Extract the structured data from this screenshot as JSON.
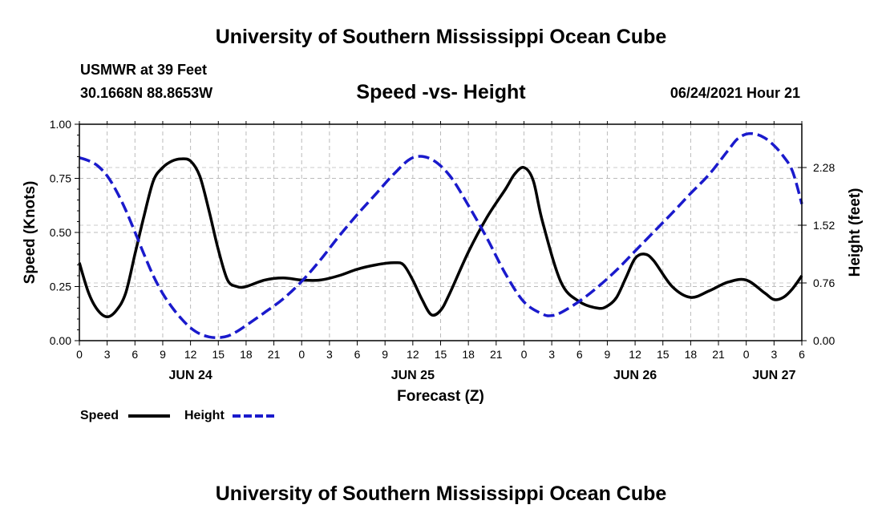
{
  "header": {
    "title": "University of Southern Mississippi Ocean Cube",
    "station": "USMWR at 39 Feet",
    "coords": "30.1668N  88.8653W",
    "subtitle": "Speed -vs- Height",
    "datetime": "06/24/2021 Hour 21"
  },
  "footer": {
    "title": "University of Southern Mississippi Ocean Cube"
  },
  "legend": {
    "speed_label": "Speed",
    "height_label": "Height"
  },
  "colors": {
    "speed": "#000000",
    "height": "#1a1acc",
    "grid": "#bbbbbb"
  },
  "chart_data": {
    "type": "line",
    "xlabel": "Forecast (Z)",
    "ylabel": "Speed (Knots)",
    "y2label": "Height (feet)",
    "x_units": "hours since 2021-06-24 00Z",
    "xlim": [
      0,
      78
    ],
    "ylim": [
      0,
      1.0
    ],
    "y2lim": [
      0,
      2.85
    ],
    "x_ticks": [
      0,
      3,
      6,
      9,
      12,
      15,
      18,
      21,
      24,
      27,
      30,
      33,
      36,
      39,
      42,
      45,
      48,
      51,
      54,
      57,
      60,
      63,
      66,
      69,
      72,
      75,
      78
    ],
    "x_tick_labels": [
      "0",
      "3",
      "6",
      "9",
      "12",
      "15",
      "18",
      "21",
      "0",
      "3",
      "6",
      "9",
      "12",
      "15",
      "18",
      "21",
      "0",
      "3",
      "6",
      "9",
      "12",
      "15",
      "18",
      "21",
      "0",
      "3",
      "6"
    ],
    "y_ticks": [
      0,
      0.25,
      0.5,
      0.75,
      1.0
    ],
    "y_tick_labels": [
      "0.00",
      "0.25",
      "0.50",
      "0.75",
      "1.00"
    ],
    "y2_ticks": [
      0,
      0.76,
      1.52,
      2.28
    ],
    "y2_tick_labels": [
      "0.00",
      "0.76",
      "1.52",
      "2.28"
    ],
    "day_labels": [
      {
        "x": 12,
        "label": "JUN 24"
      },
      {
        "x": 36,
        "label": "JUN 25"
      },
      {
        "x": 60,
        "label": "JUN 26"
      },
      {
        "x": 75,
        "label": "JUN 27"
      }
    ],
    "series": [
      {
        "name": "Speed",
        "axis": "left",
        "style": "solid",
        "x": [
          0,
          1,
          2,
          3,
          4,
          5,
          6,
          7,
          8,
          9,
          10,
          11,
          12,
          13,
          14,
          15,
          16,
          17,
          18,
          20,
          22,
          24,
          26,
          28,
          30,
          32,
          34,
          35,
          36,
          37,
          38,
          39,
          40,
          42,
          44,
          46,
          47,
          48,
          49,
          50,
          52,
          54,
          56,
          57,
          58,
          59,
          60,
          61,
          62,
          64,
          66,
          68,
          70,
          72,
          74,
          75,
          76,
          77,
          78
        ],
        "values": [
          0.36,
          0.22,
          0.14,
          0.11,
          0.14,
          0.22,
          0.4,
          0.58,
          0.74,
          0.8,
          0.83,
          0.84,
          0.83,
          0.76,
          0.6,
          0.42,
          0.28,
          0.25,
          0.25,
          0.28,
          0.29,
          0.28,
          0.28,
          0.3,
          0.33,
          0.35,
          0.36,
          0.35,
          0.28,
          0.19,
          0.12,
          0.14,
          0.22,
          0.41,
          0.57,
          0.7,
          0.77,
          0.8,
          0.74,
          0.55,
          0.27,
          0.18,
          0.15,
          0.16,
          0.2,
          0.29,
          0.38,
          0.4,
          0.37,
          0.25,
          0.2,
          0.23,
          0.27,
          0.28,
          0.22,
          0.19,
          0.2,
          0.24,
          0.3
        ]
      },
      {
        "name": "Height",
        "axis": "right",
        "style": "dashed",
        "x": [
          0,
          1,
          2,
          3,
          4,
          5,
          6,
          7,
          8,
          9,
          10,
          11,
          12,
          13,
          14,
          15,
          16,
          17,
          18,
          20,
          22,
          24,
          26,
          28,
          30,
          32,
          34,
          36,
          38,
          40,
          42,
          44,
          46,
          48,
          50,
          51,
          52,
          54,
          56,
          58,
          60,
          62,
          64,
          66,
          68,
          70,
          71,
          72,
          73,
          74,
          75,
          76,
          77,
          78
        ],
        "values": [
          2.41,
          2.37,
          2.3,
          2.17,
          1.97,
          1.72,
          1.43,
          1.13,
          0.85,
          0.62,
          0.44,
          0.29,
          0.17,
          0.09,
          0.05,
          0.04,
          0.06,
          0.12,
          0.2,
          0.37,
          0.55,
          0.78,
          1.06,
          1.37,
          1.66,
          1.93,
          2.2,
          2.41,
          2.39,
          2.17,
          1.78,
          1.35,
          0.88,
          0.51,
          0.35,
          0.33,
          0.37,
          0.52,
          0.71,
          0.93,
          1.18,
          1.43,
          1.68,
          1.94,
          2.19,
          2.5,
          2.65,
          2.72,
          2.72,
          2.67,
          2.57,
          2.43,
          2.23,
          1.8
        ]
      }
    ]
  }
}
